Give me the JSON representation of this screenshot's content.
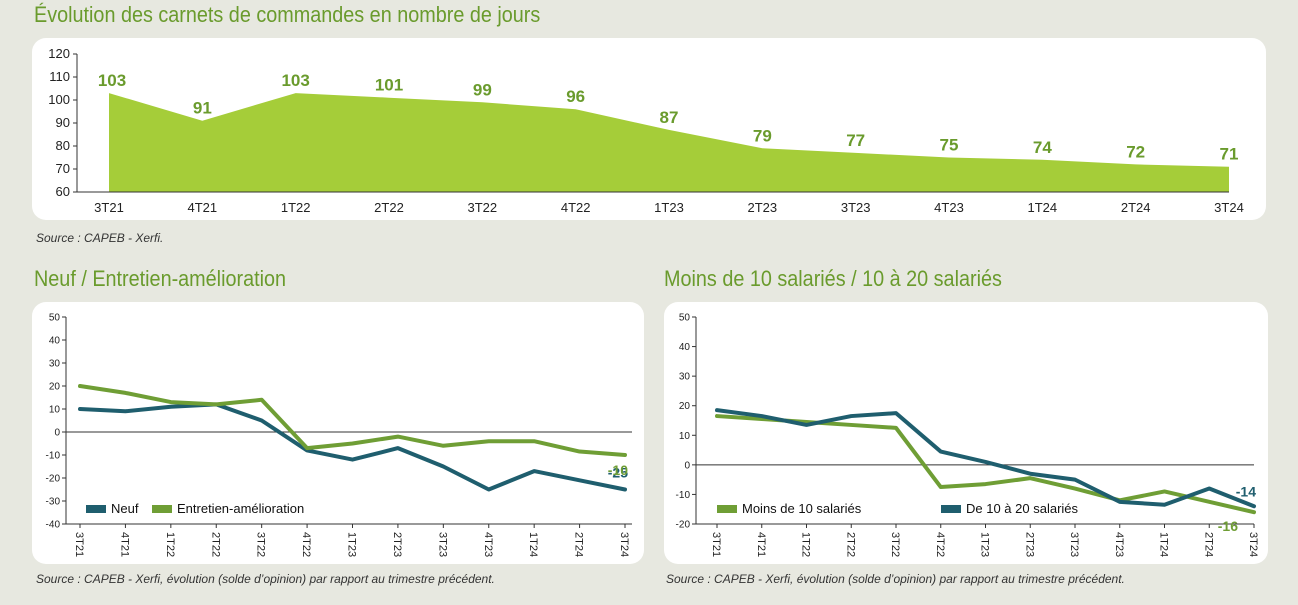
{
  "main": {
    "title": "Évolution des carnets de commandes en nombre de jours",
    "source": "Source : CAPEB - Xerfi."
  },
  "left": {
    "title": "Neuf / Entretien-amélioration",
    "source": "Source : CAPEB - Xerfi, évolution (solde d’opinion) par rapport au trimestre précédent."
  },
  "right": {
    "title": "Moins de 10 salariés / 10 à 20 salariés",
    "source": "Source : CAPEB - Xerfi, évolution (solde d’opinion) par rapport au trimestre précédent."
  },
  "colors": {
    "green_fill": "#a5cd39",
    "green_text": "#6a9b2d",
    "green_line": "#6f9e35",
    "teal_line": "#1f5e6e"
  },
  "chart_data": [
    {
      "type": "area",
      "title": "Évolution des carnets de commandes en nombre de jours",
      "categories": [
        "3T21",
        "4T21",
        "1T22",
        "2T22",
        "3T22",
        "4T22",
        "1T23",
        "2T23",
        "3T23",
        "4T23",
        "1T24",
        "2T24",
        "3T24"
      ],
      "values": [
        103,
        91,
        103,
        101,
        99,
        96,
        87,
        79,
        77,
        75,
        74,
        72,
        71
      ],
      "ylim": [
        60,
        120
      ],
      "yticks": [
        "60",
        "70",
        "80",
        "90",
        "100",
        "110",
        "120"
      ],
      "data_labels": [
        "103",
        "91",
        "103",
        "101",
        "99",
        "96",
        "87",
        "79",
        "77",
        "75",
        "74",
        "72",
        "71"
      ]
    },
    {
      "type": "line",
      "title": "Neuf / Entretien-amélioration",
      "categories": [
        "3T21",
        "4T21",
        "1T22",
        "2T22",
        "3T22",
        "4T22",
        "1T23",
        "2T23",
        "3T23",
        "4T23",
        "1T24",
        "2T24",
        "3T24"
      ],
      "ylim": [
        -40,
        50
      ],
      "yticks": [
        "-40",
        "-30",
        "-20",
        "-10",
        "0",
        "10",
        "20",
        "30",
        "40",
        "50"
      ],
      "series": [
        {
          "name": "Neuf",
          "values": [
            10,
            9,
            11,
            12,
            5,
            -8,
            -12,
            -7,
            -15,
            -25,
            -17,
            -21,
            -25
          ],
          "end_label": "-25"
        },
        {
          "name": "Entretien-amélioration",
          "values": [
            20,
            17,
            13,
            12,
            14,
            -7,
            -5,
            -2,
            -6,
            -4,
            -4,
            -8.5,
            -10
          ],
          "end_label": "-10"
        }
      ]
    },
    {
      "type": "line",
      "title": "Moins de 10 salariés / 10 à 20 salariés",
      "categories": [
        "3T21",
        "4T21",
        "1T22",
        "2T22",
        "3T22",
        "4T22",
        "1T23",
        "2T23",
        "3T23",
        "4T23",
        "1T24",
        "2T24",
        "3T24"
      ],
      "ylim": [
        -20,
        50
      ],
      "yticks": [
        "-20",
        "-10",
        "0",
        "10",
        "20",
        "30",
        "40",
        "50"
      ],
      "series": [
        {
          "name": "Moins de 10 salariés",
          "values": [
            16.5,
            15.5,
            14.5,
            13.5,
            12.5,
            -7.5,
            -6.5,
            -4.5,
            -8,
            -12,
            -9,
            -12.5,
            -16
          ],
          "end_label": "-16"
        },
        {
          "name": "De 10 à 20 salariés",
          "values": [
            18.5,
            16.5,
            13.5,
            16.5,
            17.5,
            4.5,
            1,
            -3,
            -5,
            -12.5,
            -13.5,
            -8,
            -14
          ],
          "end_label": "-14"
        }
      ]
    }
  ]
}
